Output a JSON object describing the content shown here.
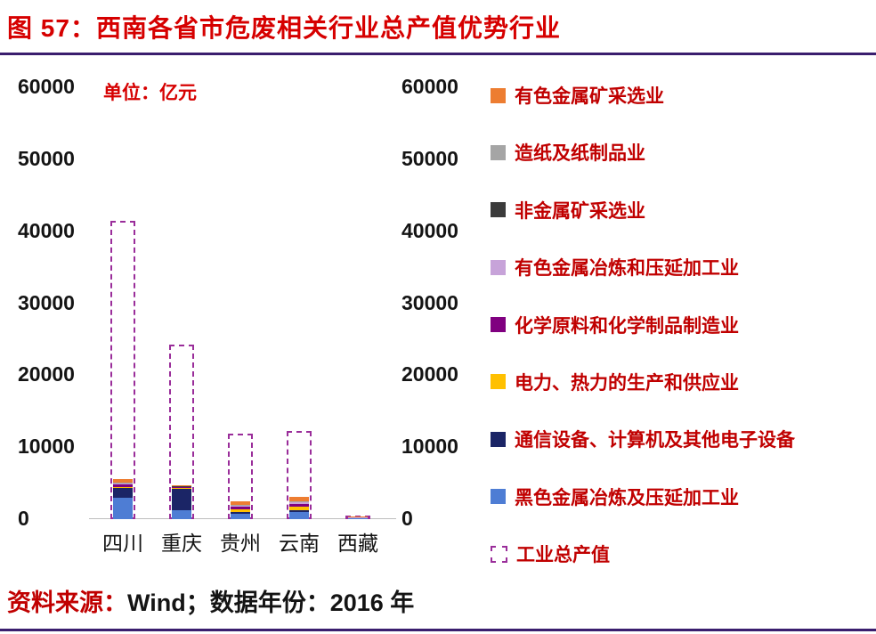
{
  "header": {
    "figure_label": "图 57：",
    "title": "西南各省市危废相关行业总产值优势行业"
  },
  "chart": {
    "unit_label": "单位：亿元"
  },
  "chart_data": {
    "type": "bar",
    "stacked": true,
    "title": "西南各省市危废相关行业总产值优势行业",
    "unit": "亿元",
    "categories": [
      "四川",
      "重庆",
      "贵州",
      "云南",
      "西藏"
    ],
    "y_axis": {
      "min": 0,
      "max": 60000,
      "ticks": [
        0,
        10000,
        20000,
        30000,
        40000,
        50000,
        60000
      ]
    },
    "series": [
      {
        "name": "黑色金属冶炼及压延加工业",
        "color": "#4E7DD4",
        "values": [
          3000,
          1200,
          800,
          1000,
          100
        ]
      },
      {
        "name": "通信设备、计算机及其他电子设备",
        "color": "#1B2566",
        "values": [
          1300,
          3000,
          200,
          300,
          20
        ]
      },
      {
        "name": "电力、热力的生产和供应业",
        "color": "#FFC000",
        "values": [
          200,
          100,
          400,
          400,
          30
        ]
      },
      {
        "name": "化学原料和化学制品制造业",
        "color": "#800080",
        "values": [
          300,
          150,
          300,
          400,
          20
        ]
      },
      {
        "name": "有色金属冶炼和压延加工业",
        "color": "#C7A3D9",
        "values": [
          100,
          50,
          100,
          200,
          20
        ]
      },
      {
        "name": "非金属矿采选业",
        "color": "#3B3B3B",
        "values": [
          100,
          30,
          100,
          100,
          10
        ]
      },
      {
        "name": "造纸及纸制品业",
        "color": "#A5A5A5",
        "values": [
          100,
          40,
          100,
          100,
          10
        ]
      },
      {
        "name": "有色金属矿采选业",
        "color": "#ED7D31",
        "values": [
          450,
          100,
          500,
          600,
          50
        ]
      }
    ],
    "outline_series": {
      "name": "工业总产值",
      "color": "#9A2D9A",
      "style": "dashed",
      "values": [
        41500,
        24300,
        11900,
        12200,
        400
      ]
    }
  },
  "legend": {
    "items": [
      {
        "label": "有色金属矿采选业",
        "color": "#ED7D31",
        "type": "solid"
      },
      {
        "label": "造纸及纸制品业",
        "color": "#A5A5A5",
        "type": "solid"
      },
      {
        "label": "非金属矿采选业",
        "color": "#3B3B3B",
        "type": "solid"
      },
      {
        "label": "有色金属冶炼和压延加工业",
        "color": "#C7A3D9",
        "type": "solid"
      },
      {
        "label": "化学原料和化学制品制造业",
        "color": "#800080",
        "type": "solid"
      },
      {
        "label": "电力、热力的生产和供应业",
        "color": "#FFC000",
        "type": "solid"
      },
      {
        "label": "通信设备、计算机及其他电子设备",
        "color": "#1B2566",
        "type": "solid"
      },
      {
        "label": "黑色金属冶炼及压延加工业",
        "color": "#4E7DD4",
        "type": "solid"
      },
      {
        "label": "工业总产值",
        "color": "#9A2D9A",
        "type": "dashed"
      }
    ]
  },
  "footer": {
    "source_label": "资料来源：",
    "source_value": "Wind；数据年份：2016 年"
  }
}
